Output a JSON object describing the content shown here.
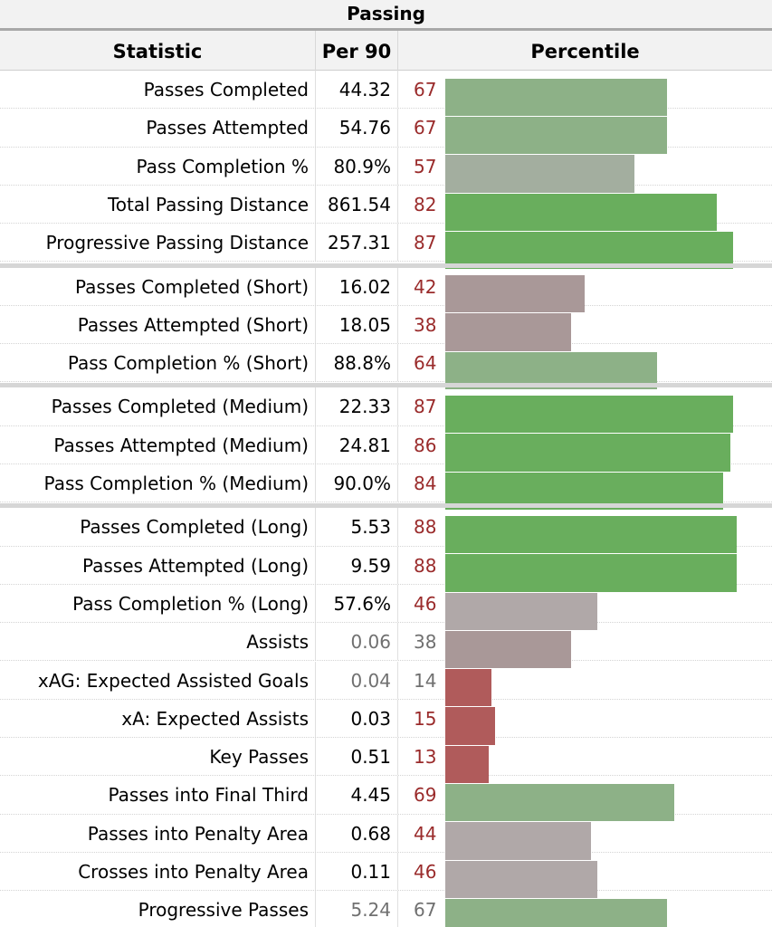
{
  "caption": "Passing",
  "headers": {
    "statistic": "Statistic",
    "per90": "Per 90",
    "percentile": "Percentile"
  },
  "colors": {
    "green_high": "#69ae5d",
    "green_mid": "#8db187",
    "grey_mid": "#a3ae9f",
    "mauve": "#a99898",
    "mauve_light": "#b0a8a8",
    "red_low": "#b05b5b",
    "text_red": "#9a2b2b",
    "text_dim": "#707070"
  },
  "rows": [
    {
      "stat": "Passes Completed",
      "per90": "44.32",
      "pct": "67"
    },
    {
      "stat": "Passes Attempted",
      "per90": "54.76",
      "pct": "67"
    },
    {
      "stat": "Pass Completion %",
      "per90": "80.9%",
      "pct": "57"
    },
    {
      "stat": "Total Passing Distance",
      "per90": "861.54",
      "pct": "82"
    },
    {
      "stat": "Progressive Passing Distance",
      "per90": "257.31",
      "pct": "87"
    },
    {
      "stat": "Passes Completed (Short)",
      "per90": "16.02",
      "pct": "42"
    },
    {
      "stat": "Passes Attempted (Short)",
      "per90": "18.05",
      "pct": "38"
    },
    {
      "stat": "Pass Completion % (Short)",
      "per90": "88.8%",
      "pct": "64"
    },
    {
      "stat": "Passes Completed (Medium)",
      "per90": "22.33",
      "pct": "87"
    },
    {
      "stat": "Passes Attempted (Medium)",
      "per90": "24.81",
      "pct": "86"
    },
    {
      "stat": "Pass Completion % (Medium)",
      "per90": "90.0%",
      "pct": "84"
    },
    {
      "stat": "Passes Completed (Long)",
      "per90": "5.53",
      "pct": "88"
    },
    {
      "stat": "Passes Attempted (Long)",
      "per90": "9.59",
      "pct": "88"
    },
    {
      "stat": "Pass Completion % (Long)",
      "per90": "57.6%",
      "pct": "46"
    },
    {
      "stat": "Assists",
      "per90": "0.06",
      "pct": "38"
    },
    {
      "stat": "xAG: Expected Assisted Goals",
      "per90": "0.04",
      "pct": "14"
    },
    {
      "stat": "xA: Expected Assists",
      "per90": "0.03",
      "pct": "15"
    },
    {
      "stat": "Key Passes",
      "per90": "0.51",
      "pct": "13"
    },
    {
      "stat": "Passes into Final Third",
      "per90": "4.45",
      "pct": "69"
    },
    {
      "stat": "Passes into Penalty Area",
      "per90": "0.68",
      "pct": "44"
    },
    {
      "stat": "Crosses into Penalty Area",
      "per90": "0.11",
      "pct": "46"
    },
    {
      "stat": "Progressive Passes",
      "per90": "5.24",
      "pct": "67"
    }
  ]
}
